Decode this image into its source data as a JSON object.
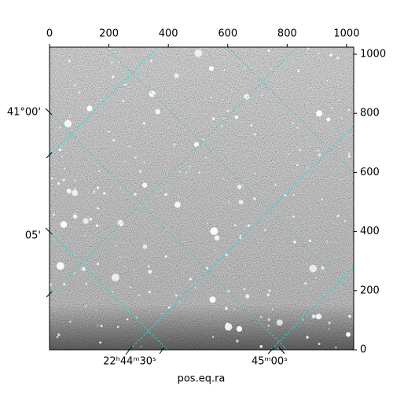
{
  "chart_data": {
    "type": "image",
    "xlabel": "pos.eq.ra",
    "xlim": [
      0,
      1024
    ],
    "xticks": [
      0,
      200,
      400,
      600,
      800,
      1000
    ],
    "ylim": [
      0,
      1024
    ],
    "yticks": [
      0,
      200,
      400,
      600,
      800,
      1000
    ],
    "ra_tick_labels": [
      "22ʰ44ᵐ30ˢ",
      "45ᵐ00ˢ"
    ],
    "dec_tick_labels": [
      "41°00'",
      "05'"
    ]
  }
}
